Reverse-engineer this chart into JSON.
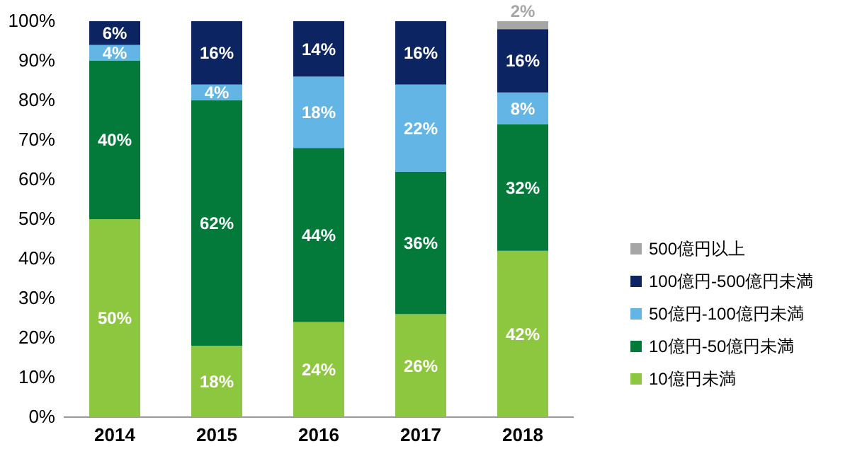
{
  "chart_data": {
    "type": "bar",
    "stacked": true,
    "categories": [
      "2014",
      "2015",
      "2016",
      "2017",
      "2018"
    ],
    "ylim": [
      0,
      100
    ],
    "yticks": [
      {
        "value": 0,
        "label": "0%"
      },
      {
        "value": 10,
        "label": "10%"
      },
      {
        "value": 20,
        "label": "20%"
      },
      {
        "value": 30,
        "label": "30%"
      },
      {
        "value": 40,
        "label": "40%"
      },
      {
        "value": 50,
        "label": "50%"
      },
      {
        "value": 60,
        "label": "60%"
      },
      {
        "value": 70,
        "label": "70%"
      },
      {
        "value": 80,
        "label": "80%"
      },
      {
        "value": 90,
        "label": "90%"
      },
      {
        "value": 100,
        "label": "100%"
      }
    ],
    "grid": false,
    "legend": "right",
    "series": [
      {
        "name": "10億円未満",
        "color": "#8dc63f",
        "values": [
          50,
          18,
          24,
          26,
          42
        ],
        "value_labels": [
          "50%",
          "18%",
          "24%",
          "26%",
          "42%"
        ]
      },
      {
        "name": "10億円-50億円未満",
        "color": "#047a3a",
        "values": [
          40,
          62,
          44,
          36,
          32
        ],
        "value_labels": [
          "40%",
          "62%",
          "44%",
          "36%",
          "32%"
        ]
      },
      {
        "name": "50億円-100億円未満",
        "color": "#62b5e5",
        "values": [
          4,
          4,
          18,
          22,
          8
        ],
        "value_labels": [
          "4%",
          "4%",
          "18%",
          "22%",
          "8%"
        ]
      },
      {
        "name": "100億円-500億円未満",
        "color": "#0c2461",
        "values": [
          6,
          16,
          14,
          16,
          16
        ],
        "value_labels": [
          "6%",
          "16%",
          "14%",
          "16%",
          "16%"
        ]
      },
      {
        "name": "500億円以上",
        "color": "#a6a6a6",
        "values": [
          null,
          null,
          null,
          null,
          2
        ],
        "value_labels": [
          null,
          null,
          null,
          null,
          "2%"
        ]
      }
    ]
  }
}
